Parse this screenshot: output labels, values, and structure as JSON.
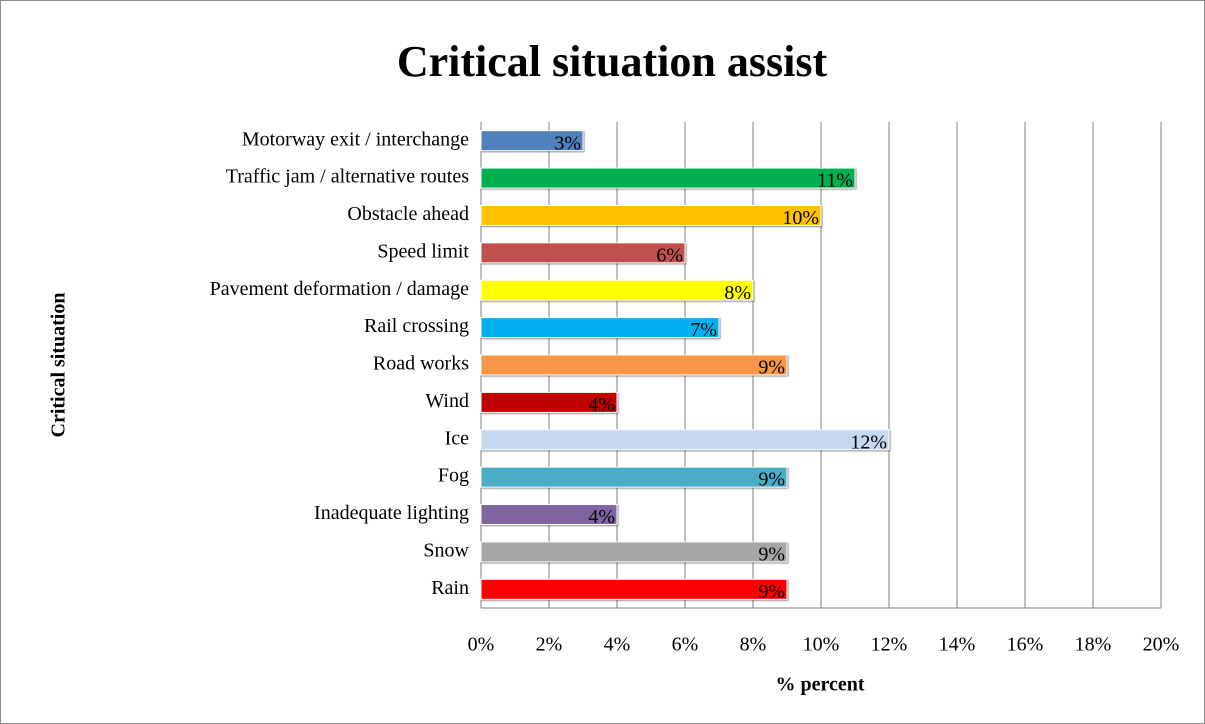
{
  "chart_data": {
    "type": "bar",
    "orientation": "horizontal",
    "title": "Critical situation assist",
    "x_label": "% percent",
    "y_label": "Critical situation",
    "categories": [
      "Motorway exit / interchange",
      "Traffic jam / alternative routes",
      "Obstacle ahead",
      "Speed limit",
      "Pavement deformation / damage",
      "Rail crossing",
      "Road works",
      "Wind",
      "Ice",
      "Fog",
      "Inadequate lighting",
      "Snow",
      "Rain"
    ],
    "values": [
      3,
      11,
      10,
      6,
      8,
      7,
      9,
      4,
      12,
      9,
      4,
      9,
      9
    ],
    "value_labels": [
      "3%",
      "11%",
      "10%",
      "6%",
      "8%",
      "7%",
      "9%",
      "4%",
      "12%",
      "9%",
      "4%",
      "9%",
      "9%"
    ],
    "colors": [
      "#4f81bd",
      "#00b050",
      "#ffc000",
      "#c0504d",
      "#ffff00",
      "#00b0f0",
      "#f79646",
      "#c00000",
      "#c6d9f1",
      "#4bacc6",
      "#8064a2",
      "#a6a6a6",
      "#ff0000"
    ],
    "xlim": [
      0,
      20
    ],
    "xticks": [
      {
        "value": 0,
        "label": "0%"
      },
      {
        "value": 2,
        "label": "2%"
      },
      {
        "value": 4,
        "label": "4%"
      },
      {
        "value": 6,
        "label": "6%"
      },
      {
        "value": 8,
        "label": "8%"
      },
      {
        "value": 10,
        "label": "10%"
      },
      {
        "value": 12,
        "label": "12%"
      },
      {
        "value": 14,
        "label": "14%"
      },
      {
        "value": 16,
        "label": "16%"
      },
      {
        "value": 18,
        "label": "18%"
      },
      {
        "value": 20,
        "label": "20%"
      }
    ],
    "grid": true
  }
}
